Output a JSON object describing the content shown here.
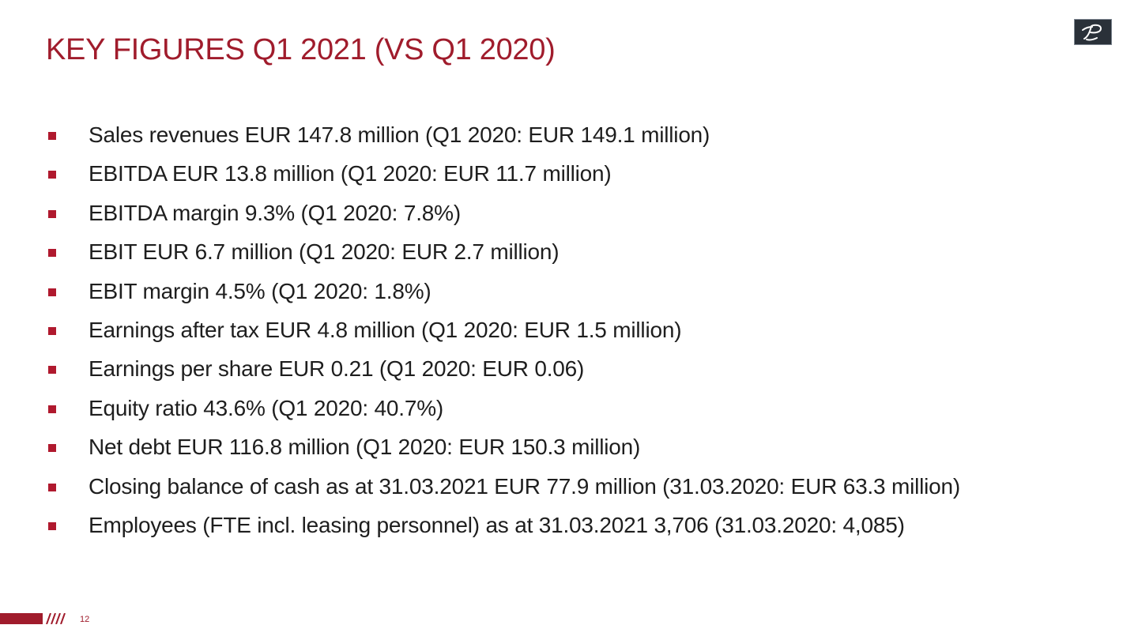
{
  "slide": {
    "title": "KEY FIGURES Q1 2021 (VS Q1 2020)",
    "logo_icon": "script-p-logo-icon",
    "accent_color": "#a01c2c",
    "bullets": [
      "Sales revenues EUR 147.8 million (Q1 2020: EUR 149.1 million)",
      "EBITDA EUR 13.8 million (Q1 2020: EUR 11.7 million)",
      "EBITDA margin 9.3% (Q1 2020: 7.8%)",
      "EBIT EUR 6.7 million (Q1 2020: EUR 2.7 million)",
      "EBIT margin 4.5% (Q1 2020: 1.8%)",
      "Earnings after tax EUR 4.8 million (Q1 2020: EUR 1.5 million)",
      "Earnings per share EUR 0.21 (Q1 2020: EUR 0.06)",
      "Equity ratio 43.6% (Q1 2020: 40.7%)",
      "Net debt EUR 116.8 million (Q1 2020: EUR 150.3 million)",
      "Closing balance of cash as at 31.03.2021 EUR 77.9 million (31.03.2020: EUR 63.3 million)",
      "Employees (FTE incl. leasing personnel) as at 31.03.2021 3,706 (31.03.2020: 4,085)"
    ],
    "page_number": "12"
  }
}
